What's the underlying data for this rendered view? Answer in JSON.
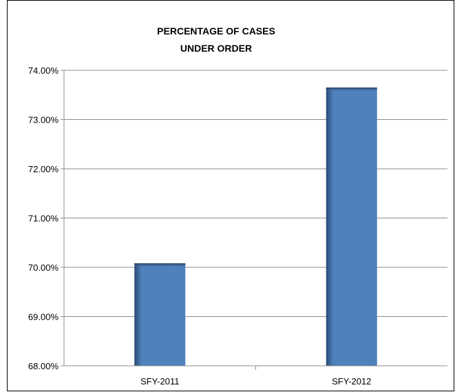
{
  "chart_data": {
    "type": "bar",
    "title": [
      "PERCENTAGE OF CASES",
      "UNDER ORDER"
    ],
    "categories": [
      "SFY-2011",
      "SFY-2012"
    ],
    "values": [
      70.08,
      73.65
    ],
    "unit": "%",
    "ylim": [
      68,
      74
    ],
    "yticks": [
      "68.00%",
      "69.00%",
      "70.00%",
      "71.00%",
      "72.00%",
      "73.00%",
      "74.00%"
    ],
    "grid": true,
    "legend": "none",
    "bar_color": "#4f81bd",
    "bar_shadow_color": "#2a4a72"
  }
}
